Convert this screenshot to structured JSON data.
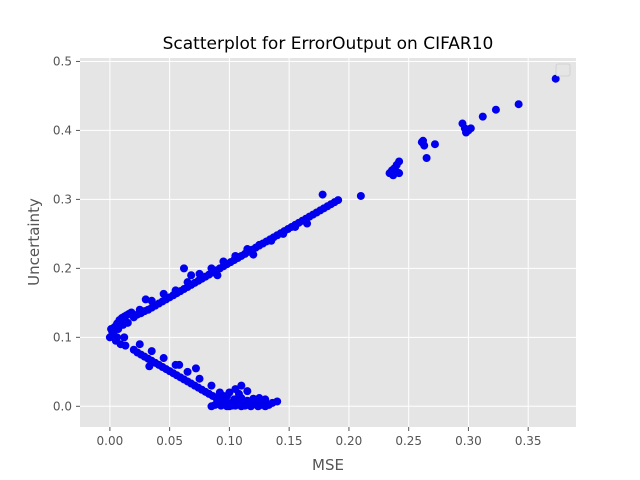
{
  "chart_data": {
    "type": "scatter",
    "title": "Scatterplot for ErrorOutput on CIFAR10",
    "xlabel": "MSE",
    "ylabel": "Uncertainty",
    "xlim": [
      -0.025,
      0.39
    ],
    "ylim": [
      -0.03,
      0.505
    ],
    "xticks": [
      0.0,
      0.05,
      0.1,
      0.15,
      0.2,
      0.25,
      0.3,
      0.35
    ],
    "xtick_labels": [
      "0.00",
      "0.05",
      "0.10",
      "0.15",
      "0.20",
      "0.25",
      "0.30",
      "0.35"
    ],
    "yticks": [
      0.0,
      0.1,
      0.2,
      0.3,
      0.4,
      0.5
    ],
    "ytick_labels": [
      "0.0",
      "0.1",
      "0.2",
      "0.3",
      "0.4",
      "0.5"
    ],
    "grid": true,
    "legend": "top-right",
    "style": {
      "background": "#e5e5e5",
      "grid_color": "#ffffff",
      "marker_color": "#0000ee"
    },
    "series": [
      {
        "x": [
          0.0,
          0.002,
          0.004,
          0.006,
          0.008,
          0.01,
          0.012,
          0.014,
          0.016,
          0.018,
          0.003,
          0.007,
          0.011,
          0.015,
          0.005,
          0.009,
          0.013,
          0.001,
          0.006,
          0.012,
          0.02,
          0.023,
          0.026,
          0.029,
          0.032,
          0.035,
          0.038,
          0.041,
          0.044,
          0.047,
          0.05,
          0.053,
          0.056,
          0.059,
          0.062,
          0.065,
          0.068,
          0.071,
          0.074,
          0.077,
          0.08,
          0.083,
          0.086,
          0.089,
          0.092,
          0.095,
          0.098,
          0.101,
          0.104,
          0.107,
          0.11,
          0.113,
          0.116,
          0.119,
          0.122,
          0.125,
          0.128,
          0.131,
          0.134,
          0.137,
          0.14,
          0.143,
          0.146,
          0.149,
          0.152,
          0.155,
          0.158,
          0.161,
          0.164,
          0.167,
          0.17,
          0.173,
          0.176,
          0.179,
          0.182,
          0.185,
          0.188,
          0.191,
          0.025,
          0.035,
          0.045,
          0.055,
          0.065,
          0.075,
          0.085,
          0.095,
          0.105,
          0.115,
          0.125,
          0.135,
          0.145,
          0.155,
          0.165,
          0.03,
          0.062,
          0.068,
          0.09,
          0.12,
          0.178,
          0.21,
          0.02,
          0.023,
          0.026,
          0.029,
          0.032,
          0.035,
          0.038,
          0.041,
          0.044,
          0.047,
          0.05,
          0.053,
          0.056,
          0.059,
          0.062,
          0.065,
          0.068,
          0.071,
          0.074,
          0.077,
          0.08,
          0.083,
          0.086,
          0.089,
          0.092,
          0.095,
          0.098,
          0.1,
          0.102,
          0.025,
          0.035,
          0.045,
          0.055,
          0.065,
          0.075,
          0.085,
          0.092,
          0.098,
          0.104,
          0.033,
          0.058,
          0.072,
          0.085,
          0.088,
          0.09,
          0.093,
          0.095,
          0.098,
          0.1,
          0.102,
          0.105,
          0.108,
          0.11,
          0.112,
          0.115,
          0.118,
          0.12,
          0.122,
          0.125,
          0.128,
          0.13,
          0.133,
          0.136,
          0.14,
          0.105,
          0.115,
          0.125,
          0.097,
          0.11,
          0.12,
          0.1,
          0.113,
          0.124,
          0.1,
          0.105,
          0.11,
          0.095,
          0.108,
          0.115,
          0.125,
          0.13,
          0.234,
          0.236,
          0.238,
          0.24,
          0.242,
          0.24,
          0.242,
          0.237,
          0.262,
          0.263,
          0.265,
          0.272,
          0.261,
          0.295,
          0.297,
          0.3,
          0.302,
          0.298,
          0.312,
          0.323,
          0.342,
          0.373
        ],
        "y": [
          0.1,
          0.108,
          0.115,
          0.12,
          0.125,
          0.128,
          0.13,
          0.132,
          0.134,
          0.136,
          0.105,
          0.112,
          0.118,
          0.121,
          0.095,
          0.09,
          0.088,
          0.112,
          0.1,
          0.1,
          0.129,
          0.133,
          0.135,
          0.138,
          0.14,
          0.143,
          0.146,
          0.149,
          0.152,
          0.155,
          0.158,
          0.161,
          0.164,
          0.167,
          0.17,
          0.173,
          0.176,
          0.179,
          0.182,
          0.185,
          0.188,
          0.191,
          0.194,
          0.197,
          0.2,
          0.203,
          0.206,
          0.209,
          0.212,
          0.215,
          0.218,
          0.221,
          0.224,
          0.227,
          0.23,
          0.233,
          0.236,
          0.239,
          0.242,
          0.245,
          0.248,
          0.251,
          0.254,
          0.257,
          0.26,
          0.263,
          0.266,
          0.269,
          0.272,
          0.275,
          0.278,
          0.281,
          0.284,
          0.287,
          0.29,
          0.293,
          0.296,
          0.299,
          0.14,
          0.153,
          0.163,
          0.168,
          0.18,
          0.192,
          0.2,
          0.21,
          0.218,
          0.228,
          0.234,
          0.24,
          0.25,
          0.26,
          0.265,
          0.155,
          0.2,
          0.19,
          0.19,
          0.22,
          0.307,
          0.305,
          0.082,
          0.078,
          0.075,
          0.072,
          0.069,
          0.066,
          0.063,
          0.06,
          0.057,
          0.054,
          0.051,
          0.048,
          0.045,
          0.042,
          0.039,
          0.036,
          0.033,
          0.03,
          0.027,
          0.024,
          0.021,
          0.018,
          0.015,
          0.012,
          0.009,
          0.007,
          0.005,
          0.003,
          0.001,
          0.09,
          0.08,
          0.07,
          0.06,
          0.05,
          0.04,
          0.03,
          0.02,
          0.015,
          0.01,
          0.058,
          0.06,
          0.055,
          0.0,
          0.002,
          0.004,
          0.001,
          0.003,
          0.0,
          0.002,
          0.005,
          0.001,
          0.003,
          0.0,
          0.004,
          0.002,
          0.0,
          0.003,
          0.006,
          0.001,
          0.004,
          0.0,
          0.002,
          0.005,
          0.007,
          0.009,
          0.008,
          0.006,
          0.01,
          0.012,
          0.011,
          0.0,
          0.001,
          0.0,
          0.02,
          0.025,
          0.03,
          0.015,
          0.018,
          0.022,
          0.012,
          0.01,
          0.338,
          0.342,
          0.345,
          0.35,
          0.355,
          0.34,
          0.338,
          0.335,
          0.385,
          0.378,
          0.36,
          0.38,
          0.383,
          0.41,
          0.403,
          0.4,
          0.403,
          0.397,
          0.42,
          0.43,
          0.438,
          0.475
        ]
      }
    ]
  }
}
